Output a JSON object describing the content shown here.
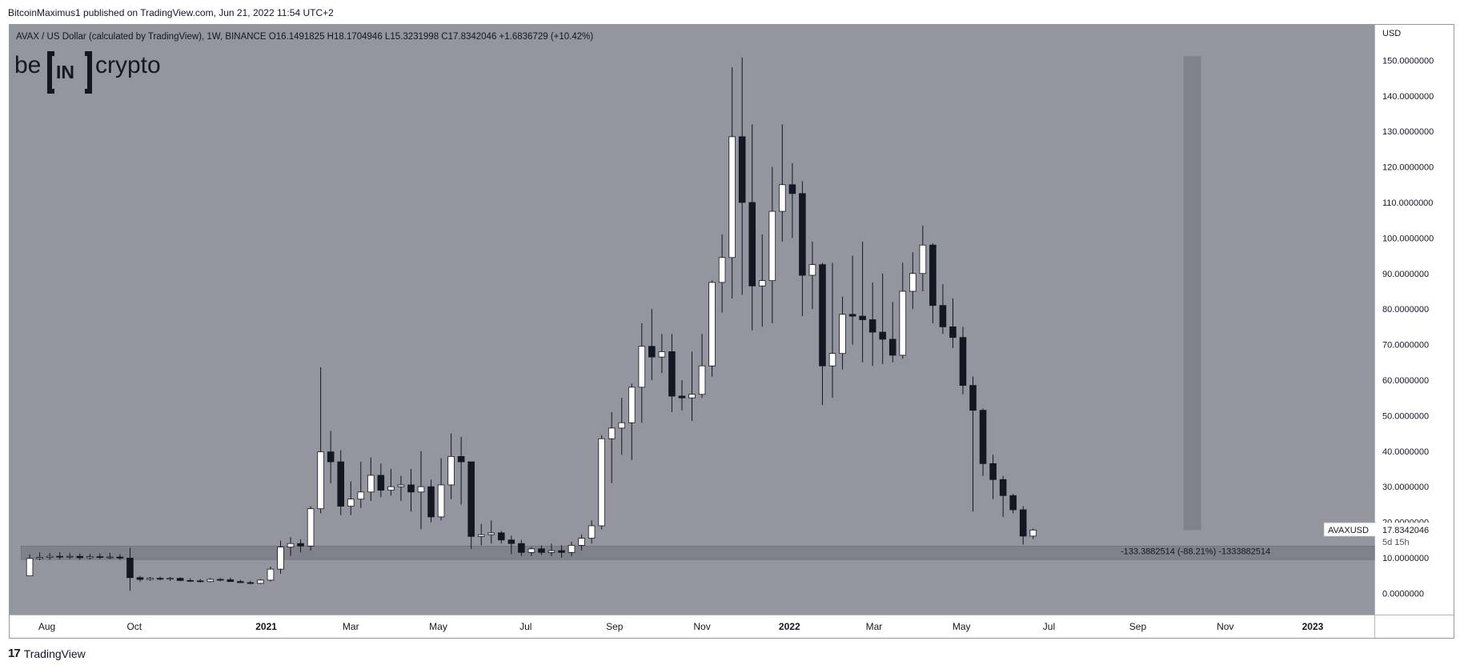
{
  "publisher_line": "BitcoinMaximus1 published on TradingView.com, Jun 21, 2022 11:54 UTC+2",
  "footer_label": "TradingView",
  "colors": {
    "background": "#93969f",
    "up_candle": "#ffffff",
    "down_candle": "#131722",
    "support_zone": "#7f828b",
    "projection_bar": "#7f828b",
    "axis_bg": "#ffffff"
  },
  "chart_data": {
    "type": "candlestick",
    "title": "AVAX / US Dollar (calculated by TradingView), 1W, BINANCE",
    "ohlc_header": {
      "o_label": "O",
      "o_value": "16.1491825",
      "h_label": "H",
      "h_value": "18.1704946",
      "l_label": "L",
      "l_value": "15.3231998",
      "c_label": "C",
      "c_value": "17.8342046",
      "change": "+1.6836729 (+10.42%)"
    },
    "logo_text": {
      "left": "be",
      "middle": "IN",
      "right": "crypto"
    },
    "y_axis_unit": "USD",
    "ylim": [
      -6,
      160
    ],
    "y_ticks": [
      0,
      10,
      20,
      30,
      40,
      50,
      60,
      70,
      80,
      90,
      100,
      110,
      120,
      130,
      140,
      150
    ],
    "y_tick_labels": [
      "0.0000000",
      "10.0000000",
      "20.0000000",
      "30.0000000",
      "40.0000000",
      "50.0000000",
      "60.0000000",
      "70.0000000",
      "80.0000000",
      "90.0000000",
      "100.0000000",
      "110.0000000",
      "120.0000000",
      "130.0000000",
      "140.0000000",
      "150.0000000"
    ],
    "x_range": [
      "2020-07-06",
      "2023-02-13"
    ],
    "x_ticks": [
      {
        "date": "2020-08-01",
        "label": "Aug"
      },
      {
        "date": "2020-10-01",
        "label": "Oct"
      },
      {
        "date": "2021-01-01",
        "label": "2021"
      },
      {
        "date": "2021-03-01",
        "label": "Mar"
      },
      {
        "date": "2021-05-01",
        "label": "May"
      },
      {
        "date": "2021-07-01",
        "label": "Jul"
      },
      {
        "date": "2021-09-01",
        "label": "Sep"
      },
      {
        "date": "2021-11-01",
        "label": "Nov"
      },
      {
        "date": "2022-01-01",
        "label": "2022"
      },
      {
        "date": "2022-03-01",
        "label": "Mar"
      },
      {
        "date": "2022-05-01",
        "label": "May"
      },
      {
        "date": "2022-07-01",
        "label": "Jul"
      },
      {
        "date": "2022-09-01",
        "label": "Sep"
      },
      {
        "date": "2022-11-01",
        "label": "Nov"
      },
      {
        "date": "2023-01-01",
        "label": "2023"
      }
    ],
    "candles": [
      {
        "t": "2020-07-20",
        "o": 4.9,
        "h": 10.9,
        "l": 4.8,
        "c": 9.8
      },
      {
        "t": "2020-07-27",
        "o": 9.8,
        "h": 11.5,
        "l": 9.3,
        "c": 10.1
      },
      {
        "t": "2020-08-03",
        "o": 10.1,
        "h": 11.3,
        "l": 9.4,
        "c": 10.4
      },
      {
        "t": "2020-08-10",
        "o": 10.4,
        "h": 11.6,
        "l": 9.5,
        "c": 10.2
      },
      {
        "t": "2020-08-17",
        "o": 10.2,
        "h": 11.3,
        "l": 9.6,
        "c": 10.4
      },
      {
        "t": "2020-08-24",
        "o": 10.4,
        "h": 11.2,
        "l": 9.4,
        "c": 10.0
      },
      {
        "t": "2020-08-31",
        "o": 10.0,
        "h": 11.1,
        "l": 9.5,
        "c": 10.3
      },
      {
        "t": "2020-09-07",
        "o": 10.3,
        "h": 11.2,
        "l": 9.6,
        "c": 10.1
      },
      {
        "t": "2020-09-14",
        "o": 10.1,
        "h": 11.4,
        "l": 9.6,
        "c": 10.2
      },
      {
        "t": "2020-09-21",
        "o": 10.2,
        "h": 11.0,
        "l": 9.4,
        "c": 9.9
      },
      {
        "t": "2020-09-28",
        "o": 9.9,
        "h": 12.8,
        "l": 0.7,
        "c": 4.4
      },
      {
        "t": "2020-10-05",
        "o": 4.4,
        "h": 4.9,
        "l": 3.3,
        "c": 3.9
      },
      {
        "t": "2020-10-12",
        "o": 3.9,
        "h": 4.6,
        "l": 3.5,
        "c": 4.2
      },
      {
        "t": "2020-10-19",
        "o": 4.2,
        "h": 4.7,
        "l": 3.6,
        "c": 4.0
      },
      {
        "t": "2020-10-26",
        "o": 4.0,
        "h": 4.6,
        "l": 3.5,
        "c": 4.2
      },
      {
        "t": "2020-11-02",
        "o": 4.2,
        "h": 4.5,
        "l": 3.4,
        "c": 3.6
      },
      {
        "t": "2020-11-09",
        "o": 3.6,
        "h": 4.2,
        "l": 3.2,
        "c": 3.5
      },
      {
        "t": "2020-11-16",
        "o": 3.5,
        "h": 4.0,
        "l": 3.0,
        "c": 3.3
      },
      {
        "t": "2020-11-23",
        "o": 3.3,
        "h": 4.3,
        "l": 3.0,
        "c": 3.9
      },
      {
        "t": "2020-11-30",
        "o": 3.9,
        "h": 4.3,
        "l": 3.4,
        "c": 3.8
      },
      {
        "t": "2020-12-07",
        "o": 3.8,
        "h": 4.4,
        "l": 3.2,
        "c": 3.3
      },
      {
        "t": "2020-12-14",
        "o": 3.3,
        "h": 3.8,
        "l": 2.9,
        "c": 3.0
      },
      {
        "t": "2020-12-21",
        "o": 3.0,
        "h": 3.5,
        "l": 2.5,
        "c": 2.8
      },
      {
        "t": "2020-12-28",
        "o": 2.8,
        "h": 4.0,
        "l": 2.6,
        "c": 3.7
      },
      {
        "t": "2021-01-04",
        "o": 3.7,
        "h": 7.5,
        "l": 3.3,
        "c": 6.8
      },
      {
        "t": "2021-01-11",
        "o": 6.8,
        "h": 14.8,
        "l": 5.5,
        "c": 13.0
      },
      {
        "t": "2021-01-18",
        "o": 13.0,
        "h": 15.8,
        "l": 10.5,
        "c": 14.0
      },
      {
        "t": "2021-01-25",
        "o": 14.0,
        "h": 15.2,
        "l": 11.5,
        "c": 13.3
      },
      {
        "t": "2021-02-01",
        "o": 13.3,
        "h": 24.5,
        "l": 12.0,
        "c": 23.8
      },
      {
        "t": "2021-02-08",
        "o": 23.8,
        "h": 63.6,
        "l": 22.5,
        "c": 39.8
      },
      {
        "t": "2021-02-15",
        "o": 39.8,
        "h": 45.7,
        "l": 31.0,
        "c": 37.0
      },
      {
        "t": "2021-02-22",
        "o": 37.0,
        "h": 40.2,
        "l": 22.0,
        "c": 24.5
      },
      {
        "t": "2021-03-01",
        "o": 24.5,
        "h": 31.5,
        "l": 22.0,
        "c": 26.5
      },
      {
        "t": "2021-03-08",
        "o": 26.5,
        "h": 37.0,
        "l": 24.0,
        "c": 28.5
      },
      {
        "t": "2021-03-15",
        "o": 28.5,
        "h": 38.2,
        "l": 26.0,
        "c": 33.2
      },
      {
        "t": "2021-03-22",
        "o": 33.2,
        "h": 36.5,
        "l": 27.0,
        "c": 29.0
      },
      {
        "t": "2021-03-29",
        "o": 29.0,
        "h": 35.0,
        "l": 27.5,
        "c": 30.0
      },
      {
        "t": "2021-04-05",
        "o": 30.0,
        "h": 33.0,
        "l": 26.0,
        "c": 30.5
      },
      {
        "t": "2021-04-12",
        "o": 30.5,
        "h": 35.0,
        "l": 23.0,
        "c": 28.5
      },
      {
        "t": "2021-04-19",
        "o": 28.5,
        "h": 40.0,
        "l": 18.0,
        "c": 30.0
      },
      {
        "t": "2021-04-26",
        "o": 30.0,
        "h": 32.0,
        "l": 20.0,
        "c": 21.5
      },
      {
        "t": "2021-05-03",
        "o": 21.5,
        "h": 38.0,
        "l": 20.5,
        "c": 30.5
      },
      {
        "t": "2021-05-10",
        "o": 30.5,
        "h": 45.0,
        "l": 26.5,
        "c": 38.5
      },
      {
        "t": "2021-05-17",
        "o": 38.5,
        "h": 44.0,
        "l": 25.0,
        "c": 37.0
      },
      {
        "t": "2021-05-24",
        "o": 37.0,
        "h": 37.0,
        "l": 12.5,
        "c": 16.0
      },
      {
        "t": "2021-05-31",
        "o": 16.0,
        "h": 19.5,
        "l": 13.5,
        "c": 16.5
      },
      {
        "t": "2021-06-07",
        "o": 16.5,
        "h": 20.5,
        "l": 14.0,
        "c": 17.0
      },
      {
        "t": "2021-06-14",
        "o": 17.0,
        "h": 17.5,
        "l": 14.0,
        "c": 15.0
      },
      {
        "t": "2021-06-21",
        "o": 15.0,
        "h": 16.2,
        "l": 11.0,
        "c": 14.0
      },
      {
        "t": "2021-06-28",
        "o": 14.0,
        "h": 15.0,
        "l": 10.5,
        "c": 11.5
      },
      {
        "t": "2021-07-05",
        "o": 11.5,
        "h": 13.0,
        "l": 10.5,
        "c": 12.5
      },
      {
        "t": "2021-07-12",
        "o": 12.5,
        "h": 13.5,
        "l": 10.8,
        "c": 11.5
      },
      {
        "t": "2021-07-19",
        "o": 11.5,
        "h": 14.0,
        "l": 10.5,
        "c": 12.0
      },
      {
        "t": "2021-07-26",
        "o": 12.0,
        "h": 13.5,
        "l": 10.0,
        "c": 11.5
      },
      {
        "t": "2021-08-02",
        "o": 11.5,
        "h": 14.5,
        "l": 10.5,
        "c": 13.5
      },
      {
        "t": "2021-08-09",
        "o": 13.5,
        "h": 16.5,
        "l": 12.0,
        "c": 15.5
      },
      {
        "t": "2021-08-16",
        "o": 15.5,
        "h": 20.5,
        "l": 14.0,
        "c": 19.0
      },
      {
        "t": "2021-08-23",
        "o": 19.0,
        "h": 44.5,
        "l": 18.0,
        "c": 43.5
      },
      {
        "t": "2021-08-30",
        "o": 43.5,
        "h": 51.0,
        "l": 31.0,
        "c": 46.5
      },
      {
        "t": "2021-09-06",
        "o": 46.5,
        "h": 55.0,
        "l": 39.0,
        "c": 48.0
      },
      {
        "t": "2021-09-13",
        "o": 48.0,
        "h": 59.0,
        "l": 37.5,
        "c": 58.0
      },
      {
        "t": "2021-09-20",
        "o": 58.0,
        "h": 76.0,
        "l": 48.0,
        "c": 69.5
      },
      {
        "t": "2021-09-27",
        "o": 69.5,
        "h": 80.0,
        "l": 60.0,
        "c": 66.5
      },
      {
        "t": "2021-10-04",
        "o": 66.5,
        "h": 73.0,
        "l": 62.0,
        "c": 68.0
      },
      {
        "t": "2021-10-11",
        "o": 68.0,
        "h": 73.0,
        "l": 51.0,
        "c": 55.5
      },
      {
        "t": "2021-10-18",
        "o": 55.5,
        "h": 60.0,
        "l": 51.5,
        "c": 55.0
      },
      {
        "t": "2021-10-25",
        "o": 55.0,
        "h": 68.0,
        "l": 48.5,
        "c": 56.0
      },
      {
        "t": "2021-11-01",
        "o": 56.0,
        "h": 73.0,
        "l": 55.0,
        "c": 64.0
      },
      {
        "t": "2021-11-08",
        "o": 64.0,
        "h": 88.0,
        "l": 61.0,
        "c": 87.5
      },
      {
        "t": "2021-11-15",
        "o": 87.5,
        "h": 101.0,
        "l": 79.0,
        "c": 94.5
      },
      {
        "t": "2021-11-22",
        "o": 94.5,
        "h": 148.0,
        "l": 83.0,
        "c": 128.5
      },
      {
        "t": "2021-11-29",
        "o": 128.5,
        "h": 150.8,
        "l": 84.0,
        "c": 110.0
      },
      {
        "t": "2021-12-06",
        "o": 110.0,
        "h": 132.0,
        "l": 74.0,
        "c": 86.5
      },
      {
        "t": "2021-12-13",
        "o": 86.5,
        "h": 101.0,
        "l": 75.0,
        "c": 88.0
      },
      {
        "t": "2021-12-20",
        "o": 88.0,
        "h": 120.0,
        "l": 76.0,
        "c": 107.5
      },
      {
        "t": "2021-12-27",
        "o": 107.5,
        "h": 132.0,
        "l": 99.0,
        "c": 115.0
      },
      {
        "t": "2022-01-03",
        "o": 115.0,
        "h": 121.0,
        "l": 100.0,
        "c": 112.5
      },
      {
        "t": "2022-01-10",
        "o": 112.5,
        "h": 116.0,
        "l": 78.0,
        "c": 89.5
      },
      {
        "t": "2022-01-17",
        "o": 89.5,
        "h": 99.0,
        "l": 80.0,
        "c": 92.5
      },
      {
        "t": "2022-01-24",
        "o": 92.5,
        "h": 93.0,
        "l": 53.0,
        "c": 64.0
      },
      {
        "t": "2022-01-31",
        "o": 64.0,
        "h": 93.0,
        "l": 55.0,
        "c": 67.5
      },
      {
        "t": "2022-02-07",
        "o": 67.5,
        "h": 83.5,
        "l": 63.0,
        "c": 78.5
      },
      {
        "t": "2022-02-14",
        "o": 78.5,
        "h": 95.0,
        "l": 70.0,
        "c": 78.0
      },
      {
        "t": "2022-02-21",
        "o": 78.0,
        "h": 99.0,
        "l": 65.0,
        "c": 77.0
      },
      {
        "t": "2022-02-28",
        "o": 77.0,
        "h": 87.5,
        "l": 64.0,
        "c": 73.5
      },
      {
        "t": "2022-03-07",
        "o": 73.5,
        "h": 90.0,
        "l": 64.5,
        "c": 71.5
      },
      {
        "t": "2022-03-14",
        "o": 71.5,
        "h": 82.0,
        "l": 65.0,
        "c": 67.0
      },
      {
        "t": "2022-03-21",
        "o": 67.0,
        "h": 93.0,
        "l": 66.0,
        "c": 85.0
      },
      {
        "t": "2022-03-28",
        "o": 85.0,
        "h": 96.0,
        "l": 80.0,
        "c": 90.0
      },
      {
        "t": "2022-04-04",
        "o": 90.0,
        "h": 103.5,
        "l": 85.0,
        "c": 98.0
      },
      {
        "t": "2022-04-11",
        "o": 98.0,
        "h": 98.5,
        "l": 76.0,
        "c": 81.0
      },
      {
        "t": "2022-04-18",
        "o": 81.0,
        "h": 87.0,
        "l": 73.0,
        "c": 75.0
      },
      {
        "t": "2022-04-25",
        "o": 75.0,
        "h": 83.0,
        "l": 69.0,
        "c": 72.0
      },
      {
        "t": "2022-05-02",
        "o": 72.0,
        "h": 75.0,
        "l": 56.0,
        "c": 58.5
      },
      {
        "t": "2022-05-09",
        "o": 58.5,
        "h": 61.0,
        "l": 23.0,
        "c": 51.5
      },
      {
        "t": "2022-05-16",
        "o": 51.5,
        "h": 52.0,
        "l": 33.0,
        "c": 36.5
      },
      {
        "t": "2022-05-23",
        "o": 36.5,
        "h": 39.0,
        "l": 26.5,
        "c": 32.0
      },
      {
        "t": "2022-05-30",
        "o": 32.0,
        "h": 33.0,
        "l": 21.5,
        "c": 27.5
      },
      {
        "t": "2022-06-06",
        "o": 27.5,
        "h": 28.0,
        "l": 22.5,
        "c": 23.5
      },
      {
        "t": "2022-06-13",
        "o": 23.5,
        "h": 24.5,
        "l": 13.7,
        "c": 16.1
      },
      {
        "t": "2022-06-20",
        "o": 16.1,
        "h": 18.2,
        "l": 15.3,
        "c": 17.8
      }
    ],
    "support_zone": {
      "y_low": 9.5,
      "y_high": 13.3,
      "t_start": "2020-07-14"
    },
    "projection_bar": {
      "t": "2022-10-09",
      "y_low": 17.8,
      "y_high": 151.2
    },
    "measurement_text": "-133.3882514 (-88.21%) -1333882514",
    "last_price_tag": {
      "symbol": "AVAXUSD",
      "price": "17.8342046",
      "countdown": "5d 15h",
      "value": 17.8342046
    }
  }
}
